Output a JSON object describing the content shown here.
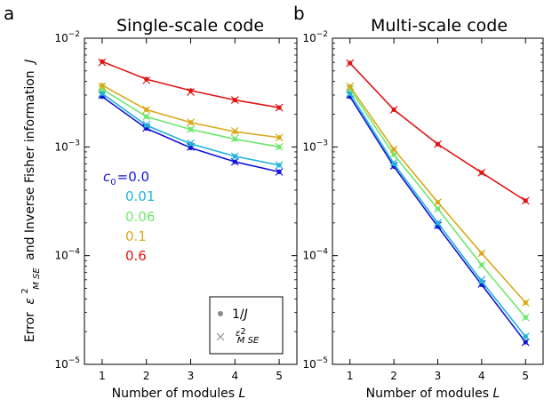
{
  "figure": {
    "panel_a_letter": "a",
    "panel_b_letter": "b",
    "ylabel": "Error  ε²MSE and Inverse Fisher information J",
    "ylabel_prefix": "Error",
    "ylabel_eps": "ε",
    "ylabel_sup": "2",
    "ylabel_sub": "M SE",
    "ylabel_suffix": "and Inverse Fisher information",
    "ylabel_var": "J",
    "colors": {
      "c0.0": "#1515d6",
      "c0.01": "#22b4d8",
      "c0.06": "#6ee86e",
      "c0.1": "#d9a91d",
      "c0.6": "#e01515"
    }
  },
  "legend": {
    "dot_label_prefix": "1/",
    "dot_label_var": "J",
    "cross_eps": "ε",
    "cross_sup": "2",
    "cross_sub": "M SE",
    "c_prefix": "c",
    "c_sub": "0",
    "c_values": [
      "=0.0",
      "0.01",
      "0.06",
      "0.1",
      "0.6"
    ]
  },
  "chart_data": [
    {
      "type": "line",
      "title": "Single-scale code",
      "xlabel_prefix": "Number of modules ",
      "xlabel_var": "L",
      "x": [
        1,
        2,
        3,
        4,
        5
      ],
      "xticks": [
        "1",
        "2",
        "3",
        "4",
        "5"
      ],
      "xlim": [
        0.6,
        5.4
      ],
      "ylim": [
        1e-05,
        0.01
      ],
      "yscale": "log",
      "yticks": [
        {
          "value": 0.01,
          "base": "10",
          "exp": "−2"
        },
        {
          "value": 0.001,
          "base": "10",
          "exp": "−3"
        },
        {
          "value": 0.0001,
          "base": "10",
          "exp": "−4"
        },
        {
          "value": 1e-05,
          "base": "10",
          "exp": "−5"
        }
      ],
      "series": [
        {
          "name": "0.0",
          "color": "#1515d6",
          "inv_fisher": [
            0.0029,
            0.00148,
            0.00098,
            0.00073,
            0.00059
          ],
          "mse": [
            0.003,
            0.0015,
            0.001,
            0.00073,
            0.00059
          ]
        },
        {
          "name": "0.01",
          "color": "#22b4d8",
          "inv_fisher": [
            0.0031,
            0.00158,
            0.00107,
            0.00082,
            0.00068
          ],
          "mse": [
            0.0031,
            0.0016,
            0.00108,
            0.00082,
            0.00068
          ]
        },
        {
          "name": "0.06",
          "color": "#6ee86e",
          "inv_fisher": [
            0.0034,
            0.0019,
            0.00145,
            0.00118,
            0.001
          ],
          "mse": [
            0.0034,
            0.0019,
            0.00145,
            0.0012,
            0.001
          ]
        },
        {
          "name": "0.1",
          "color": "#d9a91d",
          "inv_fisher": [
            0.0037,
            0.0022,
            0.00168,
            0.00138,
            0.00122
          ],
          "mse": [
            0.0036,
            0.0022,
            0.00168,
            0.0014,
            0.00122
          ]
        },
        {
          "name": "0.6",
          "color": "#e01515",
          "inv_fisher": [
            0.0061,
            0.0042,
            0.0033,
            0.0027,
            0.0023
          ],
          "mse": [
            0.006,
            0.0041,
            0.0032,
            0.0027,
            0.0023
          ]
        }
      ]
    },
    {
      "type": "line",
      "title": "Multi-scale code",
      "xlabel_prefix": "Number of modules ",
      "xlabel_var": "L",
      "x": [
        1,
        2,
        3,
        4,
        5
      ],
      "xticks": [
        "1",
        "2",
        "3",
        "4",
        "5"
      ],
      "xlim": [
        0.6,
        5.4
      ],
      "ylim": [
        1e-05,
        0.01
      ],
      "yscale": "log",
      "yticks": [
        {
          "value": 0.01,
          "base": "10",
          "exp": "−2"
        },
        {
          "value": 0.001,
          "base": "10",
          "exp": "−3"
        },
        {
          "value": 0.0001,
          "base": "10",
          "exp": "−4"
        },
        {
          "value": 1e-05,
          "base": "10",
          "exp": "−5"
        }
      ],
      "series": [
        {
          "name": "0.0",
          "color": "#1515d6",
          "inv_fisher": [
            0.0029,
            0.00066,
            0.000185,
            5.4e-05,
            1.6e-05
          ],
          "mse": [
            0.003,
            0.00067,
            0.00019,
            5.5e-05,
            1.6e-05
          ]
        },
        {
          "name": "0.01",
          "color": "#22b4d8",
          "inv_fisher": [
            0.0031,
            0.0007,
            0.0002,
            5.8e-05,
            1.8e-05
          ],
          "mse": [
            0.0031,
            0.00072,
            0.0002,
            6e-05,
            1.8e-05
          ]
        },
        {
          "name": "0.06",
          "color": "#6ee86e",
          "inv_fisher": [
            0.0034,
            0.00085,
            0.00027,
            8.2e-05,
            2.7e-05
          ],
          "mse": [
            0.0034,
            0.00085,
            0.00027,
            8.2e-05,
            2.7e-05
          ]
        },
        {
          "name": "0.1",
          "color": "#d9a91d",
          "inv_fisher": [
            0.0036,
            0.00095,
            0.00031,
            0.000105,
            3.7e-05
          ],
          "mse": [
            0.0036,
            0.00095,
            0.00031,
            0.000105,
            3.7e-05
          ]
        },
        {
          "name": "0.6",
          "color": "#e01515",
          "inv_fisher": [
            0.0059,
            0.0022,
            0.00106,
            0.00058,
            0.00032
          ],
          "mse": [
            0.0059,
            0.0022,
            0.00106,
            0.00058,
            0.00032
          ]
        }
      ]
    }
  ]
}
